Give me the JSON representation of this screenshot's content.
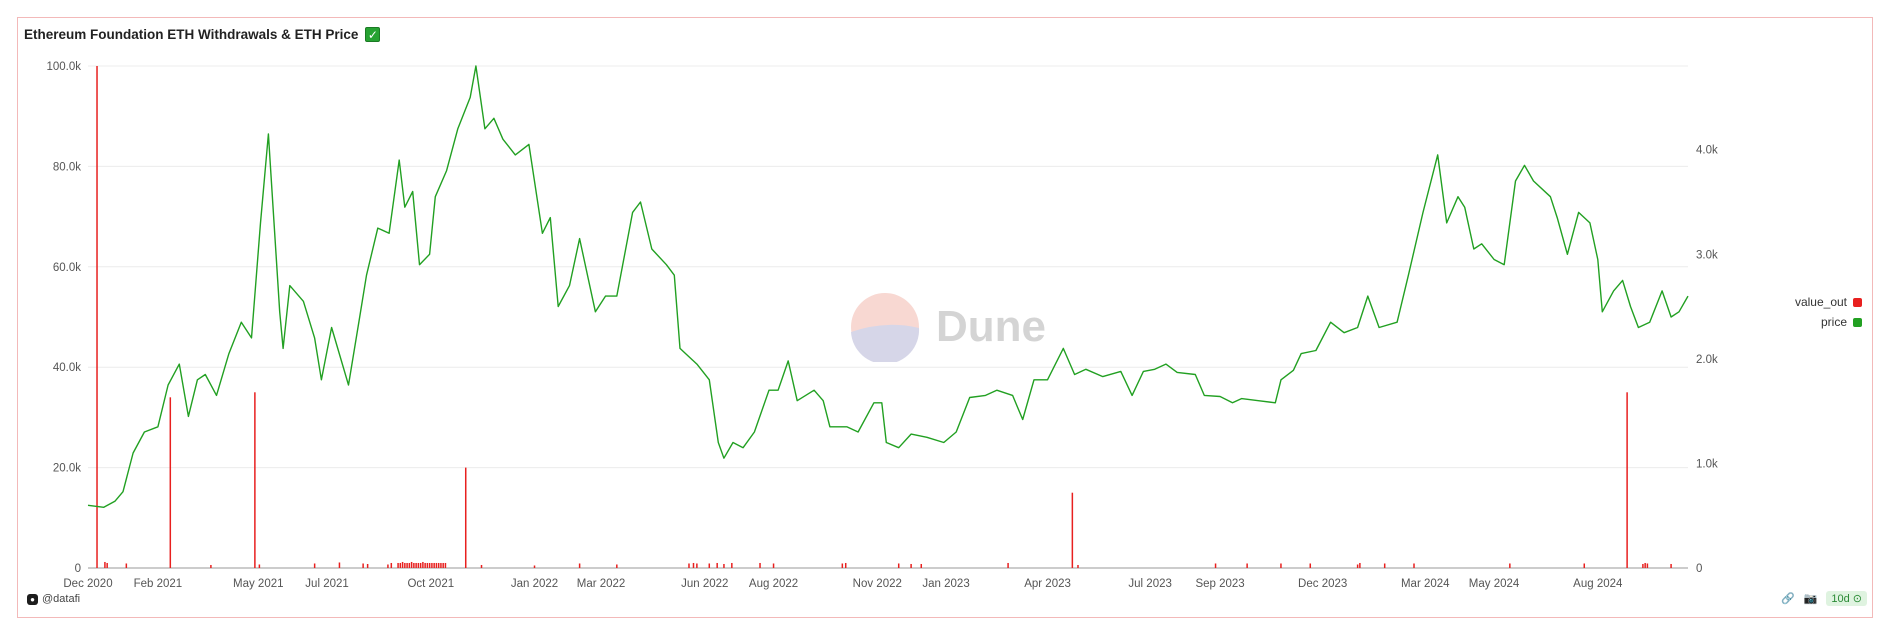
{
  "title": "Ethereum Foundation ETH Withdrawals & ETH Price",
  "title_badge_icon": "checkmark-icon",
  "author": "@datafi",
  "refresh_badge": "10d",
  "watermark": "Dune",
  "legend": [
    {
      "label": "value_out",
      "color": "#e8201f"
    },
    {
      "label": "price",
      "color": "#22a022"
    }
  ],
  "chart_data": {
    "type": "bar+line",
    "title": "Ethereum Foundation ETH Withdrawals & ETH Price",
    "x_ticks": [
      "Dec 2020",
      "Feb 2021",
      "May 2021",
      "Jul 2021",
      "Oct 2021",
      "Jan 2022",
      "Mar 2022",
      "Jun 2022",
      "Aug 2022",
      "Nov 2022",
      "Jan 2023",
      "Apr 2023",
      "Jul 2023",
      "Sep 2023",
      "Dec 2023",
      "Mar 2024",
      "May 2024",
      "Aug 2024"
    ],
    "x_range": [
      "2020-12-01",
      "2024-10-20"
    ],
    "y_left": {
      "ticks": [
        "0",
        "20.0k",
        "40.0k",
        "60.0k",
        "80.0k",
        "100.0k"
      ],
      "ylim": [
        0,
        100000
      ]
    },
    "y_right": {
      "ticks": [
        "0",
        "1.0k",
        "2.0k",
        "3.0k",
        "4.0k"
      ],
      "ylim": [
        0,
        4800
      ]
    },
    "grid": true,
    "legend_position": "right",
    "series": [
      {
        "name": "value_out",
        "kind": "bar",
        "axis": "left",
        "color": "#e8201f",
        "points": [
          [
            "2020-12-09",
            100000
          ],
          [
            "2020-12-16",
            1200
          ],
          [
            "2020-12-18",
            1000
          ],
          [
            "2021-01-04",
            900
          ],
          [
            "2021-02-12",
            34000
          ],
          [
            "2021-03-20",
            600
          ],
          [
            "2021-04-28",
            35000
          ],
          [
            "2021-05-02",
            700
          ],
          [
            "2021-06-20",
            900
          ],
          [
            "2021-07-12",
            1100
          ],
          [
            "2021-08-02",
            900
          ],
          [
            "2021-08-06",
            800
          ],
          [
            "2021-08-24",
            700
          ],
          [
            "2021-08-27",
            1000
          ],
          [
            "2021-09-02",
            1000
          ],
          [
            "2021-09-04",
            1000
          ],
          [
            "2021-09-06",
            1200
          ],
          [
            "2021-09-08",
            1000
          ],
          [
            "2021-09-10",
            1000
          ],
          [
            "2021-09-12",
            1000
          ],
          [
            "2021-09-14",
            1200
          ],
          [
            "2021-09-16",
            1000
          ],
          [
            "2021-09-18",
            1000
          ],
          [
            "2021-09-20",
            1000
          ],
          [
            "2021-09-22",
            1000
          ],
          [
            "2021-09-24",
            1200
          ],
          [
            "2021-09-26",
            1000
          ],
          [
            "2021-09-28",
            1000
          ],
          [
            "2021-09-30",
            1000
          ],
          [
            "2021-10-02",
            1000
          ],
          [
            "2021-10-04",
            1000
          ],
          [
            "2021-10-06",
            1000
          ],
          [
            "2021-10-08",
            1000
          ],
          [
            "2021-10-10",
            1000
          ],
          [
            "2021-10-12",
            1000
          ],
          [
            "2021-10-14",
            1000
          ],
          [
            "2021-11-01",
            20000
          ],
          [
            "2021-11-15",
            600
          ],
          [
            "2022-01-01",
            500
          ],
          [
            "2022-02-10",
            900
          ],
          [
            "2022-03-15",
            700
          ],
          [
            "2022-05-18",
            900
          ],
          [
            "2022-05-22",
            1000
          ],
          [
            "2022-05-25",
            900
          ],
          [
            "2022-06-05",
            900
          ],
          [
            "2022-06-12",
            1000
          ],
          [
            "2022-06-18",
            800
          ],
          [
            "2022-06-25",
            1000
          ],
          [
            "2022-07-20",
            1000
          ],
          [
            "2022-08-01",
            900
          ],
          [
            "2022-10-01",
            900
          ],
          [
            "2022-10-04",
            1000
          ],
          [
            "2022-11-20",
            900
          ],
          [
            "2022-12-01",
            800
          ],
          [
            "2022-12-10",
            800
          ],
          [
            "2023-02-25",
            1000
          ],
          [
            "2023-04-23",
            15000
          ],
          [
            "2023-04-28",
            600
          ],
          [
            "2023-08-28",
            900
          ],
          [
            "2023-09-25",
            900
          ],
          [
            "2023-10-25",
            900
          ],
          [
            "2023-11-20",
            900
          ],
          [
            "2024-01-01",
            700
          ],
          [
            "2024-01-03",
            1000
          ],
          [
            "2024-01-25",
            900
          ],
          [
            "2024-02-20",
            900
          ],
          [
            "2024-05-15",
            900
          ],
          [
            "2024-07-20",
            900
          ],
          [
            "2024-08-27",
            35000
          ],
          [
            "2024-09-10",
            800
          ],
          [
            "2024-09-12",
            1000
          ],
          [
            "2024-09-14",
            900
          ],
          [
            "2024-10-05",
            800
          ]
        ]
      },
      {
        "name": "price",
        "kind": "line",
        "axis": "right",
        "color": "#22a022",
        "points": [
          [
            "2020-12-01",
            600
          ],
          [
            "2020-12-15",
            580
          ],
          [
            "2020-12-25",
            640
          ],
          [
            "2021-01-01",
            730
          ],
          [
            "2021-01-10",
            1100
          ],
          [
            "2021-01-20",
            1300
          ],
          [
            "2021-02-01",
            1350
          ],
          [
            "2021-02-10",
            1750
          ],
          [
            "2021-02-20",
            1950
          ],
          [
            "2021-02-28",
            1450
          ],
          [
            "2021-03-08",
            1800
          ],
          [
            "2021-03-15",
            1850
          ],
          [
            "2021-03-25",
            1650
          ],
          [
            "2021-04-05",
            2050
          ],
          [
            "2021-04-16",
            2350
          ],
          [
            "2021-04-25",
            2200
          ],
          [
            "2021-05-03",
            3300
          ],
          [
            "2021-05-10",
            4150
          ],
          [
            "2021-05-12",
            3800
          ],
          [
            "2021-05-20",
            2450
          ],
          [
            "2021-05-23",
            2100
          ],
          [
            "2021-05-29",
            2700
          ],
          [
            "2021-06-10",
            2550
          ],
          [
            "2021-06-20",
            2200
          ],
          [
            "2021-06-26",
            1800
          ],
          [
            "2021-07-05",
            2300
          ],
          [
            "2021-07-20",
            1750
          ],
          [
            "2021-07-30",
            2400
          ],
          [
            "2021-08-05",
            2800
          ],
          [
            "2021-08-15",
            3250
          ],
          [
            "2021-08-25",
            3200
          ],
          [
            "2021-09-03",
            3900
          ],
          [
            "2021-09-08",
            3450
          ],
          [
            "2021-09-15",
            3600
          ],
          [
            "2021-09-21",
            2900
          ],
          [
            "2021-09-30",
            3000
          ],
          [
            "2021-10-05",
            3550
          ],
          [
            "2021-10-15",
            3800
          ],
          [
            "2021-10-25",
            4200
          ],
          [
            "2021-11-05",
            4500
          ],
          [
            "2021-11-10",
            4800
          ],
          [
            "2021-11-18",
            4200
          ],
          [
            "2021-11-26",
            4300
          ],
          [
            "2021-12-04",
            4100
          ],
          [
            "2021-12-15",
            3950
          ],
          [
            "2021-12-27",
            4050
          ],
          [
            "2022-01-08",
            3200
          ],
          [
            "2022-01-15",
            3350
          ],
          [
            "2022-01-22",
            2500
          ],
          [
            "2022-02-01",
            2700
          ],
          [
            "2022-02-10",
            3150
          ],
          [
            "2022-02-18",
            2750
          ],
          [
            "2022-02-24",
            2450
          ],
          [
            "2022-03-05",
            2600
          ],
          [
            "2022-03-15",
            2600
          ],
          [
            "2022-03-29",
            3400
          ],
          [
            "2022-04-05",
            3500
          ],
          [
            "2022-04-15",
            3050
          ],
          [
            "2022-04-28",
            2900
          ],
          [
            "2022-05-05",
            2800
          ],
          [
            "2022-05-10",
            2100
          ],
          [
            "2022-05-15",
            2050
          ],
          [
            "2022-05-25",
            1950
          ],
          [
            "2022-06-05",
            1800
          ],
          [
            "2022-06-13",
            1200
          ],
          [
            "2022-06-18",
            1050
          ],
          [
            "2022-06-26",
            1200
          ],
          [
            "2022-07-05",
            1150
          ],
          [
            "2022-07-15",
            1300
          ],
          [
            "2022-07-28",
            1700
          ],
          [
            "2022-08-05",
            1700
          ],
          [
            "2022-08-14",
            1980
          ],
          [
            "2022-08-22",
            1600
          ],
          [
            "2022-09-06",
            1700
          ],
          [
            "2022-09-14",
            1600
          ],
          [
            "2022-09-20",
            1350
          ],
          [
            "2022-10-05",
            1350
          ],
          [
            "2022-10-15",
            1300
          ],
          [
            "2022-10-29",
            1580
          ],
          [
            "2022-11-05",
            1580
          ],
          [
            "2022-11-09",
            1200
          ],
          [
            "2022-11-20",
            1150
          ],
          [
            "2022-12-01",
            1280
          ],
          [
            "2022-12-15",
            1250
          ],
          [
            "2022-12-30",
            1200
          ],
          [
            "2023-01-10",
            1300
          ],
          [
            "2023-01-22",
            1630
          ],
          [
            "2023-02-05",
            1650
          ],
          [
            "2023-02-15",
            1700
          ],
          [
            "2023-03-01",
            1650
          ],
          [
            "2023-03-10",
            1420
          ],
          [
            "2023-03-20",
            1800
          ],
          [
            "2023-04-01",
            1800
          ],
          [
            "2023-04-15",
            2100
          ],
          [
            "2023-04-25",
            1850
          ],
          [
            "2023-05-05",
            1900
          ],
          [
            "2023-05-20",
            1830
          ],
          [
            "2023-06-05",
            1880
          ],
          [
            "2023-06-15",
            1650
          ],
          [
            "2023-06-25",
            1880
          ],
          [
            "2023-07-05",
            1900
          ],
          [
            "2023-07-15",
            1950
          ],
          [
            "2023-07-25",
            1870
          ],
          [
            "2023-08-10",
            1850
          ],
          [
            "2023-08-18",
            1650
          ],
          [
            "2023-09-01",
            1640
          ],
          [
            "2023-09-12",
            1580
          ],
          [
            "2023-09-20",
            1620
          ],
          [
            "2023-10-05",
            1600
          ],
          [
            "2023-10-20",
            1580
          ],
          [
            "2023-10-25",
            1800
          ],
          [
            "2023-11-05",
            1890
          ],
          [
            "2023-11-12",
            2050
          ],
          [
            "2023-11-25",
            2080
          ],
          [
            "2023-12-08",
            2350
          ],
          [
            "2023-12-20",
            2250
          ],
          [
            "2024-01-01",
            2300
          ],
          [
            "2024-01-10",
            2600
          ],
          [
            "2024-01-20",
            2300
          ],
          [
            "2024-02-05",
            2350
          ],
          [
            "2024-02-15",
            2800
          ],
          [
            "2024-02-28",
            3400
          ],
          [
            "2024-03-12",
            3950
          ],
          [
            "2024-03-20",
            3300
          ],
          [
            "2024-03-30",
            3550
          ],
          [
            "2024-04-05",
            3450
          ],
          [
            "2024-04-13",
            3050
          ],
          [
            "2024-04-20",
            3100
          ],
          [
            "2024-05-01",
            2950
          ],
          [
            "2024-05-10",
            2900
          ],
          [
            "2024-05-20",
            3700
          ],
          [
            "2024-05-28",
            3850
          ],
          [
            "2024-06-05",
            3700
          ],
          [
            "2024-06-20",
            3550
          ],
          [
            "2024-06-26",
            3350
          ],
          [
            "2024-07-05",
            3000
          ],
          [
            "2024-07-15",
            3400
          ],
          [
            "2024-07-25",
            3300
          ],
          [
            "2024-08-01",
            2950
          ],
          [
            "2024-08-05",
            2450
          ],
          [
            "2024-08-15",
            2650
          ],
          [
            "2024-08-23",
            2750
          ],
          [
            "2024-08-30",
            2500
          ],
          [
            "2024-09-06",
            2300
          ],
          [
            "2024-09-16",
            2350
          ],
          [
            "2024-09-27",
            2650
          ],
          [
            "2024-10-05",
            2400
          ],
          [
            "2024-10-12",
            2450
          ],
          [
            "2024-10-20",
            2600
          ]
        ]
      }
    ]
  }
}
